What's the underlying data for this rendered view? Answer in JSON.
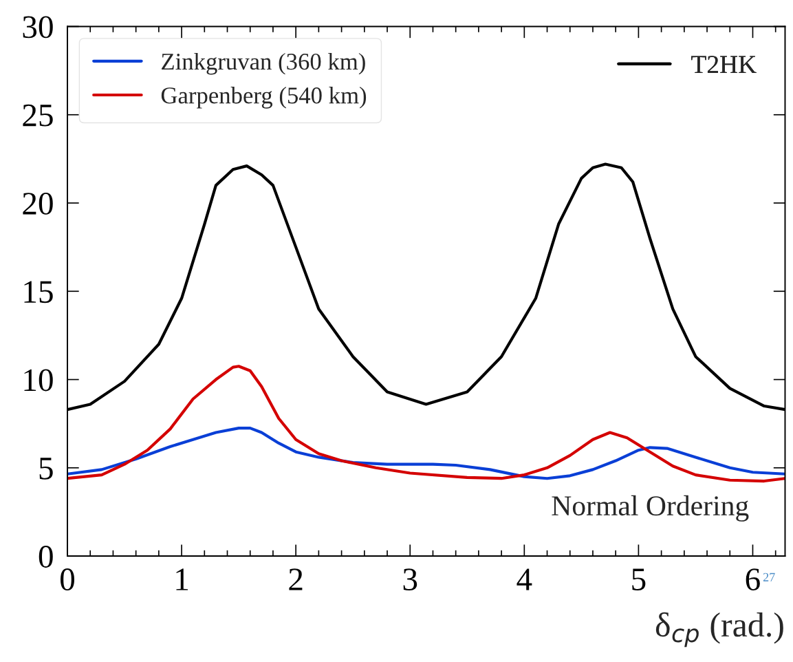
{
  "chart_data": {
    "type": "line",
    "xlabel": "δ$_{cp}$ (rad.)",
    "xlim": [
      0,
      6.283
    ],
    "ylim": [
      0,
      30
    ],
    "xticks": [
      0,
      1,
      2,
      3,
      4,
      5,
      6
    ],
    "yticks": [
      0,
      5,
      10,
      15,
      20,
      25,
      30
    ],
    "grid": false,
    "legend": "top",
    "line_style": "solid",
    "marker": "none",
    "annotations": [
      "Normal Ordering",
      "27"
    ],
    "series": [
      {
        "name": "Zinkgruvan (360 km)",
        "color": "#0a3fd6",
        "x": [
          0,
          0.3,
          0.6,
          0.9,
          1.1,
          1.3,
          1.5,
          1.6,
          1.7,
          1.85,
          2.0,
          2.2,
          2.5,
          2.8,
          3.2,
          3.4,
          3.7,
          4.0,
          4.2,
          4.4,
          4.6,
          4.8,
          5.0,
          5.1,
          5.25,
          5.5,
          5.8,
          6.0,
          6.283
        ],
        "values": [
          4.65,
          4.9,
          5.5,
          6.2,
          6.6,
          7.0,
          7.25,
          7.25,
          7.0,
          6.4,
          5.9,
          5.6,
          5.3,
          5.2,
          5.2,
          5.15,
          4.9,
          4.5,
          4.4,
          4.55,
          4.9,
          5.4,
          6.0,
          6.15,
          6.1,
          5.6,
          5.0,
          4.75,
          4.65
        ]
      },
      {
        "name": "Garpenberg (540 km)",
        "color": "#d40000",
        "x": [
          0,
          0.3,
          0.5,
          0.7,
          0.9,
          1.1,
          1.3,
          1.45,
          1.5,
          1.6,
          1.7,
          1.85,
          2.0,
          2.2,
          2.4,
          2.7,
          3.0,
          3.5,
          3.8,
          4.0,
          4.2,
          4.4,
          4.6,
          4.75,
          4.9,
          5.1,
          5.3,
          5.5,
          5.8,
          6.1,
          6.283
        ],
        "values": [
          4.4,
          4.6,
          5.2,
          6.0,
          7.2,
          8.9,
          10.0,
          10.7,
          10.75,
          10.5,
          9.6,
          7.8,
          6.6,
          5.8,
          5.4,
          5.0,
          4.7,
          4.45,
          4.4,
          4.6,
          5.0,
          5.7,
          6.6,
          7.0,
          6.7,
          5.9,
          5.1,
          4.6,
          4.3,
          4.25,
          4.4
        ]
      },
      {
        "name": "T2HK",
        "color": "#000000",
        "x": [
          0,
          0.2,
          0.5,
          0.8,
          1.0,
          1.2,
          1.3,
          1.45,
          1.57,
          1.7,
          1.8,
          2.0,
          2.2,
          2.5,
          2.8,
          3.14,
          3.5,
          3.8,
          4.1,
          4.3,
          4.5,
          4.6,
          4.71,
          4.85,
          4.95,
          5.1,
          5.3,
          5.5,
          5.8,
          6.1,
          6.283
        ],
        "values": [
          8.3,
          8.6,
          9.9,
          12.0,
          14.6,
          18.8,
          21.0,
          21.9,
          22.1,
          21.6,
          21.0,
          17.5,
          14.0,
          11.3,
          9.3,
          8.6,
          9.3,
          11.3,
          14.6,
          18.8,
          21.4,
          22.0,
          22.2,
          22.0,
          21.2,
          18.0,
          14.0,
          11.3,
          9.5,
          8.5,
          8.3
        ]
      }
    ]
  }
}
